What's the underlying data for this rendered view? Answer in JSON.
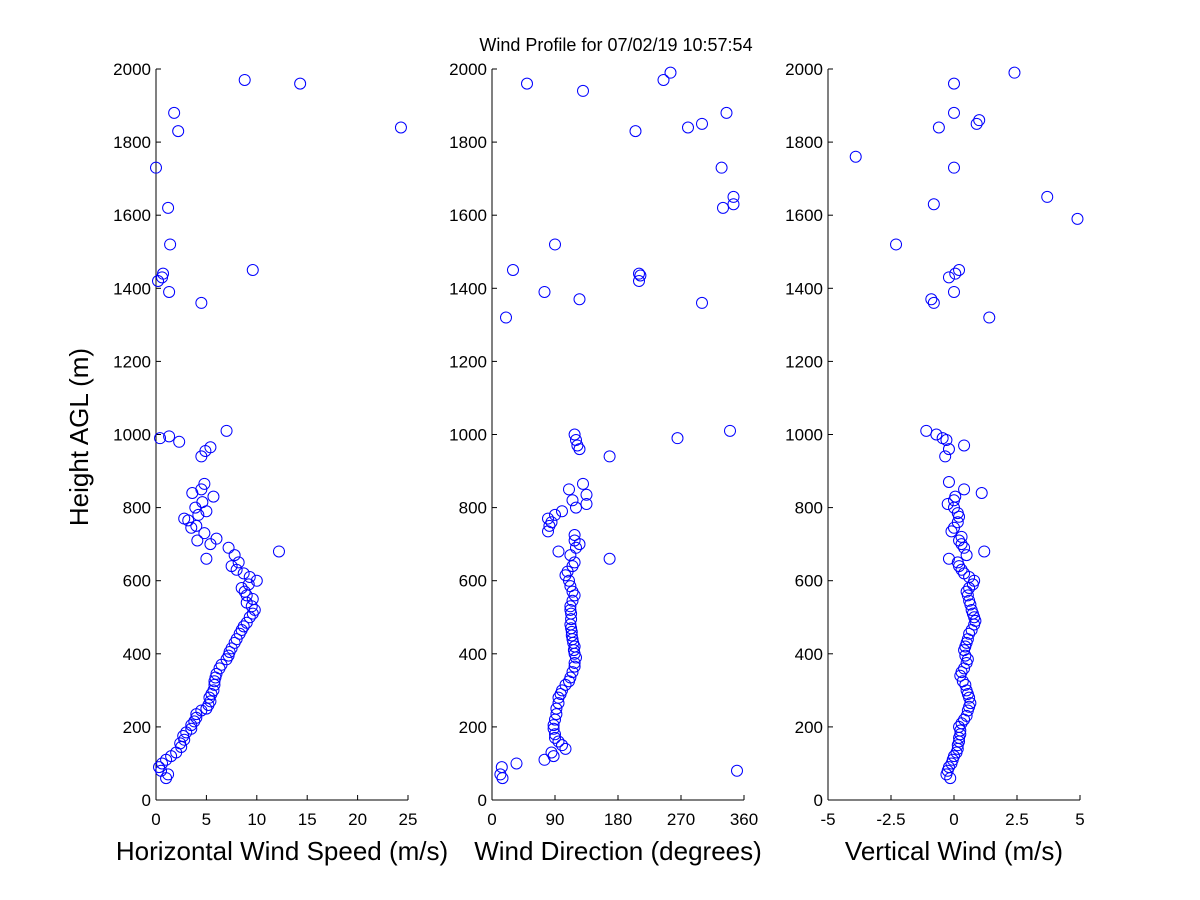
{
  "title": "Wind Profile for  07/02/19 10:57:54",
  "ylabel": "Height AGL (m)",
  "colors": {
    "marker": "#0000ff",
    "axis": "#000000",
    "background": "#ffffff"
  },
  "chart_data": [
    {
      "type": "scatter",
      "xlabel": "Horizontal Wind Speed (m/s)",
      "xlim": [
        0,
        25
      ],
      "xticks": [
        0,
        5,
        10,
        15,
        20,
        25
      ],
      "xtick_labels": [
        "0",
        "5",
        "10",
        "15",
        "20",
        "25"
      ],
      "ylim": [
        0,
        2000
      ],
      "yticks": [
        0,
        200,
        400,
        600,
        800,
        1000,
        1200,
        1400,
        1600,
        1800,
        2000
      ],
      "ytick_labels": [
        "0",
        "200",
        "400",
        "600",
        "800",
        "1000",
        "1200",
        "1400",
        "1600",
        "1800",
        "2000"
      ],
      "grid": false,
      "marker": "circle",
      "points": [
        [
          1.0,
          60
        ],
        [
          1.2,
          70
        ],
        [
          0.5,
          80
        ],
        [
          0.3,
          90
        ],
        [
          0.6,
          100
        ],
        [
          1.0,
          110
        ],
        [
          1.5,
          120
        ],
        [
          2.0,
          130
        ],
        [
          2.5,
          145
        ],
        [
          2.4,
          155
        ],
        [
          2.8,
          165
        ],
        [
          2.7,
          175
        ],
        [
          3.0,
          185
        ],
        [
          3.5,
          195
        ],
        [
          3.5,
          205
        ],
        [
          3.8,
          215
        ],
        [
          4.0,
          225
        ],
        [
          4.0,
          235
        ],
        [
          4.5,
          245
        ],
        [
          5.0,
          250
        ],
        [
          5.2,
          260
        ],
        [
          5.4,
          270
        ],
        [
          5.3,
          280
        ],
        [
          5.5,
          290
        ],
        [
          5.7,
          300
        ],
        [
          5.8,
          315
        ],
        [
          5.8,
          325
        ],
        [
          5.9,
          335
        ],
        [
          6.0,
          345
        ],
        [
          6.3,
          360
        ],
        [
          6.5,
          370
        ],
        [
          7.0,
          385
        ],
        [
          7.2,
          395
        ],
        [
          7.3,
          405
        ],
        [
          7.5,
          415
        ],
        [
          7.8,
          430
        ],
        [
          8.0,
          440
        ],
        [
          8.3,
          455
        ],
        [
          8.5,
          465
        ],
        [
          8.7,
          475
        ],
        [
          9.0,
          485
        ],
        [
          9.3,
          500
        ],
        [
          9.6,
          510
        ],
        [
          9.8,
          520
        ],
        [
          9.5,
          530
        ],
        [
          9.0,
          540
        ],
        [
          9.6,
          550
        ],
        [
          9.0,
          560
        ],
        [
          8.8,
          570
        ],
        [
          8.5,
          580
        ],
        [
          9.2,
          590
        ],
        [
          10.0,
          600
        ],
        [
          9.3,
          610
        ],
        [
          8.7,
          620
        ],
        [
          8.0,
          630
        ],
        [
          7.5,
          640
        ],
        [
          8.2,
          650
        ],
        [
          5.0,
          660
        ],
        [
          7.8,
          670
        ],
        [
          12.2,
          680
        ],
        [
          7.2,
          690
        ],
        [
          5.4,
          700
        ],
        [
          4.1,
          710
        ],
        [
          6.0,
          715
        ],
        [
          4.8,
          730
        ],
        [
          3.5,
          745
        ],
        [
          4.0,
          750
        ],
        [
          3.2,
          765
        ],
        [
          2.8,
          770
        ],
        [
          4.2,
          780
        ],
        [
          5.0,
          790
        ],
        [
          3.9,
          800
        ],
        [
          4.6,
          815
        ],
        [
          5.7,
          830
        ],
        [
          3.6,
          840
        ],
        [
          4.5,
          850
        ],
        [
          4.8,
          865
        ],
        [
          4.5,
          940
        ],
        [
          4.9,
          955
        ],
        [
          5.4,
          965
        ],
        [
          2.3,
          980
        ],
        [
          0.4,
          990
        ],
        [
          1.3,
          995
        ],
        [
          7.0,
          1010
        ],
        [
          4.5,
          1360
        ],
        [
          1.3,
          1390
        ],
        [
          0.2,
          1420
        ],
        [
          0.6,
          1430
        ],
        [
          0.7,
          1440
        ],
        [
          9.6,
          1450
        ],
        [
          1.4,
          1520
        ],
        [
          1.2,
          1620
        ],
        [
          0.0,
          1730
        ],
        [
          24.3,
          1840
        ],
        [
          2.2,
          1830
        ],
        [
          1.8,
          1880
        ],
        [
          14.3,
          1960
        ],
        [
          8.8,
          1970
        ]
      ]
    },
    {
      "type": "scatter",
      "xlabel": "Wind Direction (degrees)",
      "xlim": [
        0,
        360
      ],
      "xticks": [
        0,
        90,
        180,
        270,
        360
      ],
      "xtick_labels": [
        "0",
        "90",
        "180",
        "270",
        "360"
      ],
      "ylim": [
        0,
        2000
      ],
      "yticks": [
        0,
        200,
        400,
        600,
        800,
        1000,
        1200,
        1400,
        1600,
        1800,
        2000
      ],
      "ytick_labels": [
        "0",
        "200",
        "400",
        "600",
        "800",
        "1000",
        "1200",
        "1400",
        "1600",
        "1800",
        "2000"
      ],
      "grid": false,
      "marker": "circle",
      "points": [
        [
          15,
          60
        ],
        [
          12,
          70
        ],
        [
          350,
          80
        ],
        [
          14,
          90
        ],
        [
          35,
          100
        ],
        [
          75,
          110
        ],
        [
          88,
          120
        ],
        [
          85,
          130
        ],
        [
          105,
          140
        ],
        [
          100,
          150
        ],
        [
          95,
          160
        ],
        [
          90,
          170
        ],
        [
          90,
          180
        ],
        [
          88,
          195
        ],
        [
          88,
          205
        ],
        [
          90,
          220
        ],
        [
          92,
          235
        ],
        [
          92,
          250
        ],
        [
          95,
          265
        ],
        [
          95,
          280
        ],
        [
          98,
          290
        ],
        [
          100,
          300
        ],
        [
          105,
          315
        ],
        [
          110,
          325
        ],
        [
          112,
          335
        ],
        [
          115,
          350
        ],
        [
          118,
          365
        ],
        [
          118,
          375
        ],
        [
          120,
          390
        ],
        [
          118,
          400
        ],
        [
          117,
          410
        ],
        [
          118,
          420
        ],
        [
          116,
          430
        ],
        [
          115,
          440
        ],
        [
          114,
          450
        ],
        [
          114,
          460
        ],
        [
          113,
          470
        ],
        [
          112,
          480
        ],
        [
          113,
          495
        ],
        [
          113,
          510
        ],
        [
          112,
          520
        ],
        [
          112,
          530
        ],
        [
          115,
          545
        ],
        [
          118,
          560
        ],
        [
          115,
          570
        ],
        [
          112,
          585
        ],
        [
          110,
          600
        ],
        [
          105,
          615
        ],
        [
          108,
          625
        ],
        [
          115,
          640
        ],
        [
          118,
          650
        ],
        [
          168,
          660
        ],
        [
          112,
          670
        ],
        [
          95,
          680
        ],
        [
          120,
          690
        ],
        [
          125,
          700
        ],
        [
          118,
          710
        ],
        [
          118,
          725
        ],
        [
          80,
          735
        ],
        [
          82,
          750
        ],
        [
          85,
          760
        ],
        [
          80,
          770
        ],
        [
          90,
          780
        ],
        [
          100,
          790
        ],
        [
          120,
          800
        ],
        [
          135,
          810
        ],
        [
          115,
          820
        ],
        [
          135,
          835
        ],
        [
          110,
          850
        ],
        [
          130,
          865
        ],
        [
          168,
          940
        ],
        [
          125,
          960
        ],
        [
          122,
          970
        ],
        [
          120,
          985
        ],
        [
          265,
          990
        ],
        [
          118,
          1000
        ],
        [
          340,
          1010
        ],
        [
          20,
          1320
        ],
        [
          125,
          1370
        ],
        [
          300,
          1360
        ],
        [
          75,
          1390
        ],
        [
          210,
          1420
        ],
        [
          212,
          1435
        ],
        [
          210,
          1440
        ],
        [
          30,
          1450
        ],
        [
          90,
          1520
        ],
        [
          330,
          1620
        ],
        [
          345,
          1630
        ],
        [
          345,
          1650
        ],
        [
          328,
          1730
        ],
        [
          205,
          1830
        ],
        [
          280,
          1840
        ],
        [
          300,
          1850
        ],
        [
          335,
          1880
        ],
        [
          130,
          1940
        ],
        [
          50,
          1960
        ],
        [
          245,
          1970
        ],
        [
          255,
          1990
        ]
      ]
    },
    {
      "type": "scatter",
      "xlabel": "Vertical Wind (m/s)",
      "xlim": [
        -5,
        5
      ],
      "xticks": [
        -5,
        -2.5,
        0,
        2.5,
        5
      ],
      "xtick_labels": [
        "-5",
        "-2.5",
        "0",
        "2.5",
        "5"
      ],
      "ylim": [
        0,
        2000
      ],
      "yticks": [
        0,
        200,
        400,
        600,
        800,
        1000,
        1200,
        1400,
        1600,
        1800,
        2000
      ],
      "ytick_labels": [
        "0",
        "200",
        "400",
        "600",
        "800",
        "1000",
        "1200",
        "1400",
        "1600",
        "1800",
        "2000"
      ],
      "grid": false,
      "marker": "circle",
      "points": [
        [
          -0.15,
          60
        ],
        [
          -0.3,
          70
        ],
        [
          -0.25,
          80
        ],
        [
          -0.2,
          90
        ],
        [
          -0.1,
          100
        ],
        [
          -0.05,
          110
        ],
        [
          0.0,
          120
        ],
        [
          0.1,
          130
        ],
        [
          0.15,
          140
        ],
        [
          0.15,
          150
        ],
        [
          0.2,
          160
        ],
        [
          0.2,
          170
        ],
        [
          0.25,
          180
        ],
        [
          0.25,
          190
        ],
        [
          0.2,
          200
        ],
        [
          0.3,
          210
        ],
        [
          0.4,
          220
        ],
        [
          0.5,
          230
        ],
        [
          0.55,
          245
        ],
        [
          0.6,
          255
        ],
        [
          0.65,
          265
        ],
        [
          0.6,
          280
        ],
        [
          0.55,
          290
        ],
        [
          0.5,
          300
        ],
        [
          0.45,
          315
        ],
        [
          0.35,
          325
        ],
        [
          0.25,
          340
        ],
        [
          0.3,
          350
        ],
        [
          0.4,
          360
        ],
        [
          0.5,
          375
        ],
        [
          0.55,
          385
        ],
        [
          0.45,
          395
        ],
        [
          0.4,
          410
        ],
        [
          0.45,
          420
        ],
        [
          0.5,
          430
        ],
        [
          0.55,
          440
        ],
        [
          0.6,
          455
        ],
        [
          0.7,
          465
        ],
        [
          0.8,
          480
        ],
        [
          0.85,
          490
        ],
        [
          0.8,
          500
        ],
        [
          0.75,
          510
        ],
        [
          0.7,
          520
        ],
        [
          0.65,
          535
        ],
        [
          0.6,
          545
        ],
        [
          0.55,
          560
        ],
        [
          0.5,
          570
        ],
        [
          0.6,
          580
        ],
        [
          0.75,
          590
        ],
        [
          0.8,
          600
        ],
        [
          0.6,
          610
        ],
        [
          0.4,
          620
        ],
        [
          0.3,
          630
        ],
        [
          0.2,
          640
        ],
        [
          0.15,
          650
        ],
        [
          -0.2,
          660
        ],
        [
          0.5,
          670
        ],
        [
          1.2,
          680
        ],
        [
          0.4,
          690
        ],
        [
          0.3,
          700
        ],
        [
          0.2,
          710
        ],
        [
          0.3,
          720
        ],
        [
          -0.1,
          735
        ],
        [
          0.0,
          745
        ],
        [
          0.15,
          760
        ],
        [
          0.2,
          775
        ],
        [
          0.15,
          785
        ],
        [
          0.0,
          800
        ],
        [
          -0.25,
          810
        ],
        [
          0.0,
          820
        ],
        [
          0.05,
          830
        ],
        [
          1.1,
          840
        ],
        [
          0.4,
          850
        ],
        [
          -0.2,
          870
        ],
        [
          -0.35,
          940
        ],
        [
          -0.2,
          960
        ],
        [
          0.4,
          970
        ],
        [
          -0.3,
          985
        ],
        [
          -0.45,
          990
        ],
        [
          -0.7,
          1000
        ],
        [
          -1.1,
          1010
        ],
        [
          1.4,
          1320
        ],
        [
          -0.8,
          1360
        ],
        [
          -0.9,
          1370
        ],
        [
          0.0,
          1390
        ],
        [
          -0.2,
          1430
        ],
        [
          0.05,
          1440
        ],
        [
          0.2,
          1450
        ],
        [
          -2.3,
          1520
        ],
        [
          4.9,
          1590
        ],
        [
          3.7,
          1650
        ],
        [
          -0.8,
          1630
        ],
        [
          0.0,
          1730
        ],
        [
          -3.9,
          1760
        ],
        [
          -0.6,
          1840
        ],
        [
          0.9,
          1850
        ],
        [
          1.0,
          1860
        ],
        [
          0.0,
          1880
        ],
        [
          0.0,
          1960
        ],
        [
          2.4,
          1990
        ]
      ]
    }
  ]
}
